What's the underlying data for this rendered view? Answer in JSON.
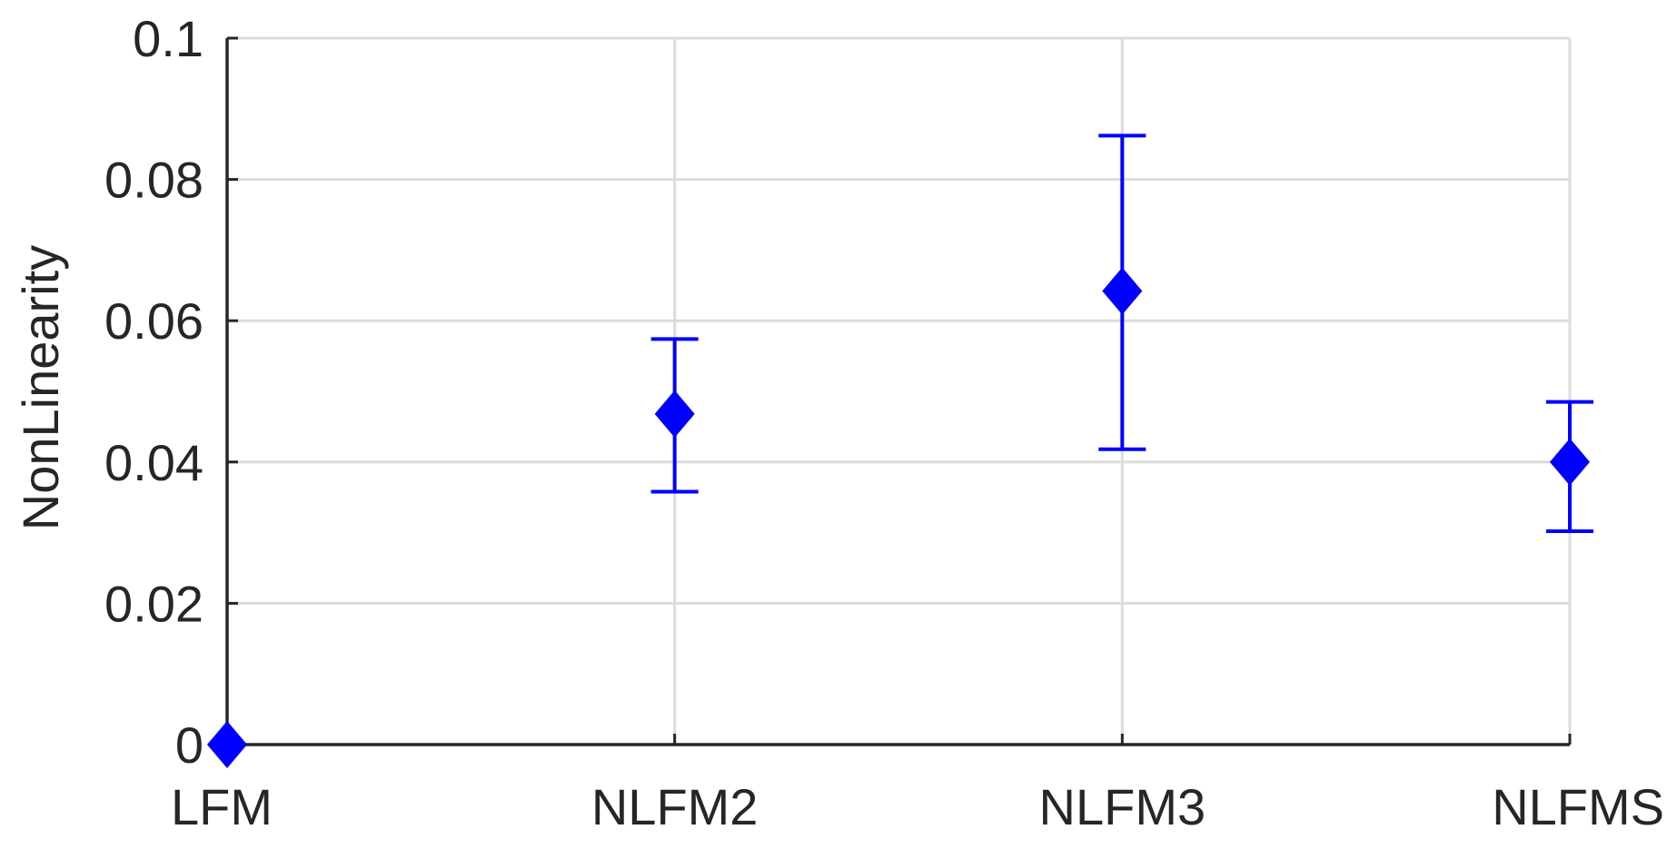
{
  "chart_data": {
    "type": "scatter",
    "title": "",
    "xlabel": "",
    "ylabel": "NonLinearity",
    "categories": [
      "LFM",
      "NLFM2",
      "NLFM3",
      "NLFMS"
    ],
    "ylim": [
      0,
      0.1
    ],
    "yticks": [
      "0",
      "0.02",
      "0.04",
      "0.06",
      "0.08",
      "0.1"
    ],
    "grid": true,
    "series": [
      {
        "marker": "diamond",
        "color": "#0000ff",
        "values": [
          0.0,
          0.0468,
          0.0642,
          0.04
        ],
        "error_lower": [
          0.0,
          0.0358,
          0.0418,
          0.0302
        ],
        "error_upper": [
          0.0,
          0.0574,
          0.0862,
          0.0485
        ]
      }
    ]
  }
}
